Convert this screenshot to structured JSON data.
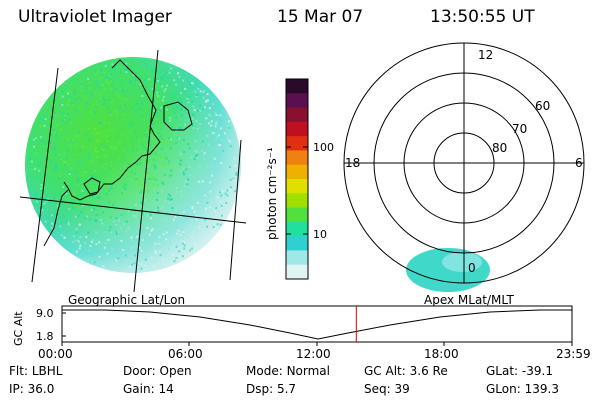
{
  "header": {
    "instrument": "Ultraviolet Imager",
    "date": "15 Mar 07",
    "time": "13:50:55 UT"
  },
  "colorbar": {
    "unit_label": "photon cm⁻²s⁻¹",
    "ticks": [
      "100",
      "10"
    ],
    "colors": [
      "#2a0a2a",
      "#5a1050",
      "#8a1030",
      "#c01020",
      "#e03010",
      "#f08010",
      "#f0b000",
      "#e0e000",
      "#a0e000",
      "#50e040",
      "#20e0a0",
      "#30d0d0",
      "#a0e8e8",
      "#e0f4f4"
    ]
  },
  "polar": {
    "lat_labels": [
      "80",
      "70",
      "60"
    ],
    "mlt_labels": {
      "top": "12",
      "left": "18",
      "right": "6",
      "bottom": "0"
    }
  },
  "timeline": {
    "y_axis_label": "GC Alt",
    "y_ticks": [
      "9.0",
      "1.8"
    ],
    "left_title": "Geographic Lat/Lon",
    "right_title": "Apex MLat/MLT",
    "time_ticks": [
      "00:00",
      "06:00",
      "12:00",
      "18:00",
      "23:59"
    ],
    "current_time_fraction": 0.577
  },
  "status": {
    "row1": [
      {
        "label": "Flt:",
        "value": "LBHL"
      },
      {
        "label": "Door:",
        "value": "Open"
      },
      {
        "label": "Mode:",
        "value": "Normal"
      },
      {
        "label": "GC Alt:",
        "value": "3.6 Re"
      },
      {
        "label": "GLat:",
        "value": "-39.1"
      }
    ],
    "row2": [
      {
        "label": "IP:",
        "value": "36.0"
      },
      {
        "label": "Gain:",
        "value": "14"
      },
      {
        "label": "Dsp:",
        "value": "5.7"
      },
      {
        "label": "Seq:",
        "value": "39"
      },
      {
        "label": "GLon:",
        "value": "139.3"
      }
    ]
  }
}
